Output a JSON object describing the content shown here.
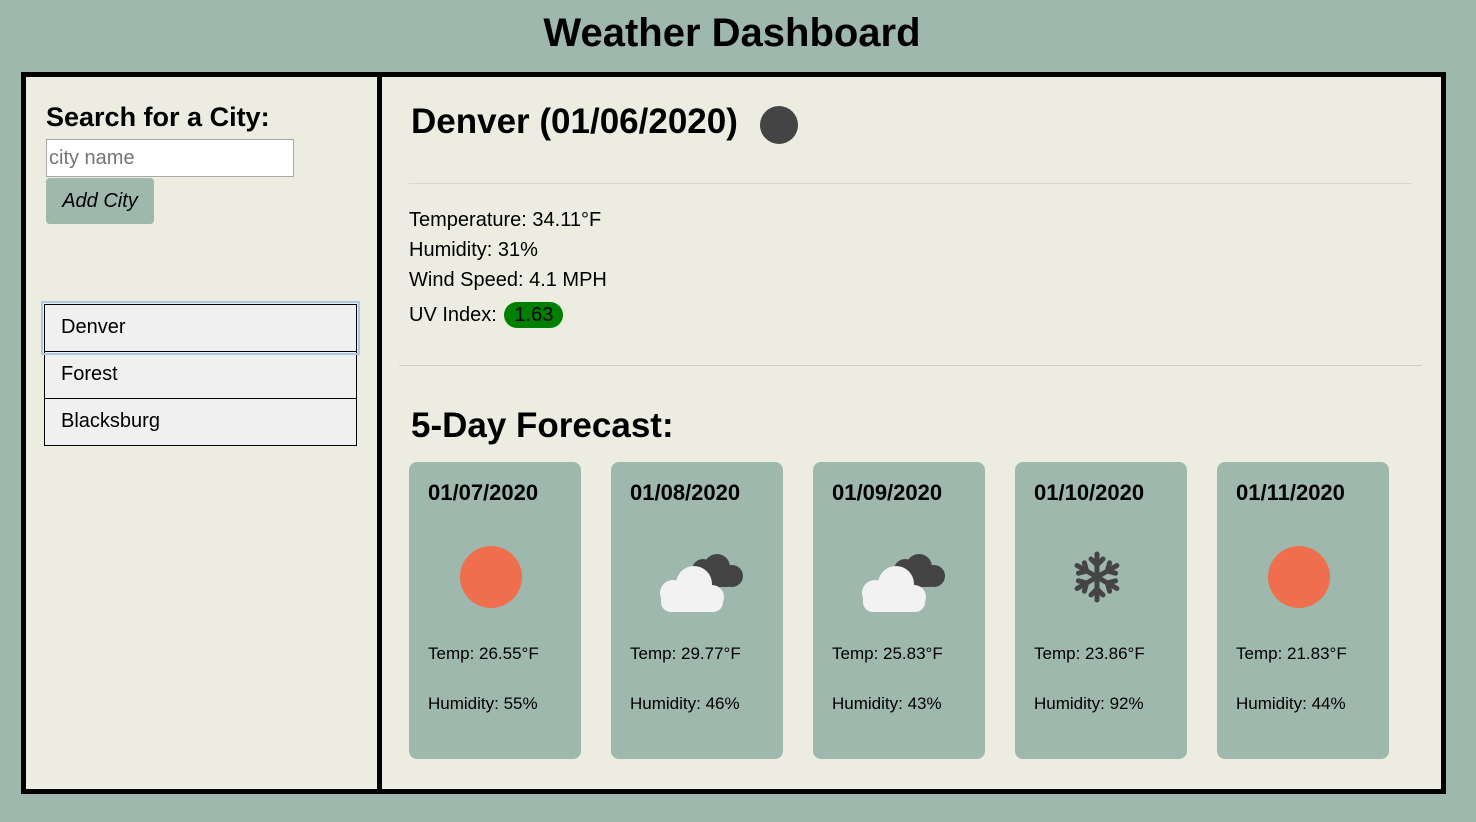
{
  "header": {
    "title": "Weather Dashboard"
  },
  "sidebar": {
    "search_label": "Search for a City:",
    "search_placeholder": "city name",
    "search_value": "",
    "add_button_label": "Add City",
    "cities": [
      "Denver",
      "Forest",
      "Blacksburg"
    ],
    "selected_city": "Denver"
  },
  "current": {
    "title": "Denver (01/06/2020)",
    "icon": "moon-night-icon",
    "temperature": "Temperature: 34.11°F",
    "humidity": "Humidity: 31%",
    "wind_speed": "Wind Speed: 4.1 MPH",
    "uv_label": "UV Index:",
    "uv_value": "1.63",
    "uv_color": "#008000"
  },
  "forecast": {
    "title": "5-Day Forecast:",
    "days": [
      {
        "date": "01/07/2020",
        "icon": "sun-icon",
        "temp": "Temp: 26.55°F",
        "humidity": "Humidity: 55%"
      },
      {
        "date": "01/08/2020",
        "icon": "clouds-icon",
        "temp": "Temp: 29.77°F",
        "humidity": "Humidity: 46%"
      },
      {
        "date": "01/09/2020",
        "icon": "clouds-icon",
        "temp": "Temp: 25.83°F",
        "humidity": "Humidity: 43%"
      },
      {
        "date": "01/10/2020",
        "icon": "snowflake-icon",
        "temp": "Temp: 23.86°F",
        "humidity": "Humidity: 92%"
      },
      {
        "date": "01/11/2020",
        "icon": "sun-icon",
        "temp": "Temp: 21.83°F",
        "humidity": "Humidity: 44%"
      }
    ]
  },
  "colors": {
    "background": "#9fb8ad",
    "panel": "#ecece0",
    "card": "#9fb8ad",
    "sun": "#ee6e4e",
    "cloud_dark": "#444444",
    "cloud_light": "#f2f2f2"
  }
}
